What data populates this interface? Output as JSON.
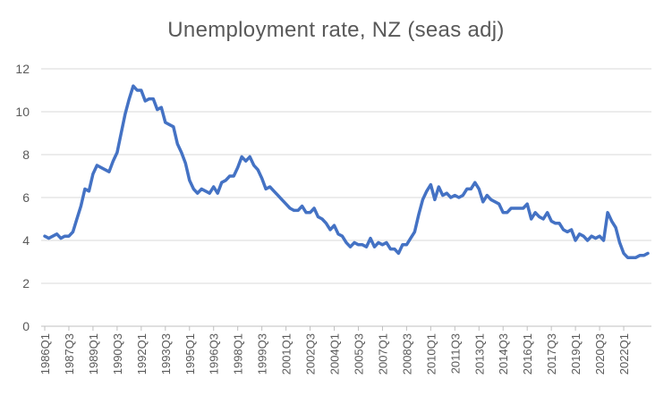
{
  "chart_data": {
    "type": "line",
    "title": "Unemployment rate, NZ (seas adj)",
    "xlabel": "",
    "ylabel": "",
    "ylim": [
      0,
      12
    ],
    "yticks": [
      0,
      2,
      4,
      6,
      8,
      10,
      12
    ],
    "grid": "horizontal",
    "legend": "none",
    "colors": {
      "line": "#4472C4",
      "grid": "#d9d9d9",
      "axis": "#bfbfbf",
      "text": "#595959"
    },
    "x_start_quarter": "1986Q1",
    "x_tick_labels": [
      "1986Q1",
      "1987Q3",
      "1989Q1",
      "1990Q3",
      "1992Q1",
      "1993Q3",
      "1995Q1",
      "1996Q3",
      "1998Q1",
      "1999Q3",
      "2001Q1",
      "2002Q3",
      "2004Q1",
      "2005Q3",
      "2007Q1",
      "2008Q3",
      "2010Q1",
      "2011Q3",
      "2013Q1",
      "2014Q3",
      "2016Q1",
      "2017Q3",
      "2019Q1",
      "2020Q3",
      "2022Q1"
    ],
    "series": [
      {
        "values": [
          4.2,
          4.1,
          4.2,
          4.3,
          4.1,
          4.2,
          4.2,
          4.4,
          5.0,
          5.6,
          6.4,
          6.3,
          7.1,
          7.5,
          7.4,
          7.3,
          7.2,
          7.7,
          8.1,
          9.0,
          9.9,
          10.6,
          11.2,
          11.0,
          11.0,
          10.5,
          10.6,
          10.6,
          10.1,
          10.2,
          9.5,
          9.4,
          9.3,
          8.5,
          8.1,
          7.6,
          6.8,
          6.4,
          6.2,
          6.4,
          6.3,
          6.2,
          6.5,
          6.2,
          6.7,
          6.8,
          7.0,
          7.0,
          7.4,
          7.9,
          7.7,
          7.9,
          7.5,
          7.3,
          6.9,
          6.4,
          6.5,
          6.3,
          6.1,
          5.9,
          5.7,
          5.5,
          5.4,
          5.4,
          5.6,
          5.3,
          5.3,
          5.5,
          5.1,
          5.0,
          4.8,
          4.5,
          4.7,
          4.3,
          4.2,
          3.9,
          3.7,
          3.9,
          3.8,
          3.8,
          3.7,
          4.1,
          3.7,
          3.9,
          3.8,
          3.9,
          3.6,
          3.6,
          3.4,
          3.8,
          3.8,
          4.1,
          4.4,
          5.2,
          5.9,
          6.3,
          6.6,
          5.9,
          6.5,
          6.1,
          6.2,
          6.0,
          6.1,
          6.0,
          6.1,
          6.4,
          6.4,
          6.7,
          6.4,
          5.8,
          6.1,
          5.9,
          5.8,
          5.7,
          5.3,
          5.3,
          5.5,
          5.5,
          5.5,
          5.5,
          5.7,
          5.0,
          5.3,
          5.1,
          5.0,
          5.3,
          4.9,
          4.8,
          4.8,
          4.5,
          4.4,
          4.5,
          4.0,
          4.3,
          4.2,
          4.0,
          4.2,
          4.1,
          4.2,
          4.0,
          5.3,
          4.9,
          4.6,
          3.9,
          3.4,
          3.2,
          3.2,
          3.2,
          3.3,
          3.3,
          3.4
        ]
      }
    ]
  }
}
